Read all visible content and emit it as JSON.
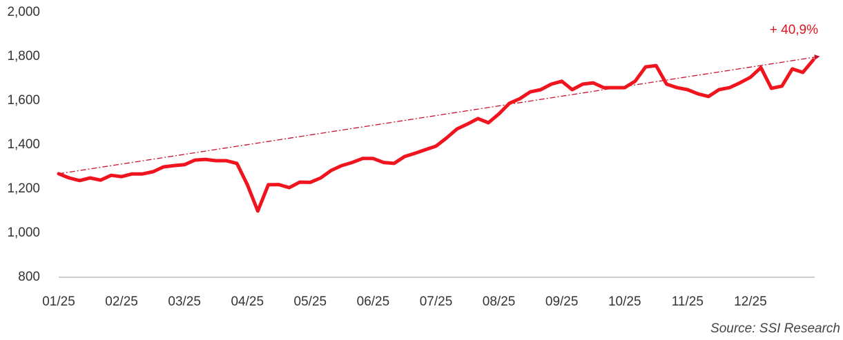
{
  "chart_data": {
    "type": "line",
    "categories": [
      "01/25",
      null,
      null,
      null,
      null,
      null,
      "02/25",
      null,
      null,
      null,
      null,
      null,
      "03/25",
      null,
      null,
      null,
      null,
      null,
      "04/25",
      null,
      null,
      null,
      null,
      null,
      "05/25",
      null,
      null,
      null,
      null,
      null,
      "06/25",
      null,
      null,
      null,
      null,
      null,
      "07/25",
      null,
      null,
      null,
      null,
      null,
      "08/25",
      null,
      null,
      null,
      null,
      null,
      "09/25",
      null,
      null,
      null,
      null,
      null,
      "10/25",
      null,
      null,
      null,
      null,
      null,
      "11/25",
      null,
      null,
      null,
      null,
      null,
      "12/25",
      null,
      null,
      null,
      null,
      null,
      null
    ],
    "series": [
      {
        "color": "#f0141e",
        "values": [
          1269,
          1250,
          1238,
          1250,
          1240,
          1262,
          1256,
          1268,
          1268,
          1278,
          1300,
          1306,
          1310,
          1331,
          1334,
          1328,
          1328,
          1316,
          1219,
          1100,
          1219,
          1220,
          1206,
          1231,
          1230,
          1250,
          1284,
          1306,
          1320,
          1338,
          1338,
          1320,
          1316,
          1347,
          1362,
          1378,
          1394,
          1431,
          1472,
          1494,
          1519,
          1500,
          1540,
          1588,
          1609,
          1640,
          1650,
          1675,
          1688,
          1650,
          1675,
          1681,
          1659,
          1659,
          1659,
          1688,
          1753,
          1759,
          1675,
          1659,
          1650,
          1631,
          1619,
          1650,
          1659,
          1681,
          1706,
          1750,
          1656,
          1666,
          1744,
          1728,
          1785
        ]
      }
    ],
    "ylim": [
      800,
      2000
    ],
    "yticks": [
      800,
      {
        "value": 1000,
        "label": "1,000"
      },
      {
        "value": 1200,
        "label": "1,200"
      },
      {
        "value": 1400,
        "label": "1,400"
      },
      {
        "value": 1600,
        "label": "1,600"
      },
      {
        "value": 1800,
        "label": "1,800"
      },
      {
        "value": 2000,
        "label": "2,000"
      }
    ],
    "trend_line": {
      "start": 1269,
      "end": 1800,
      "color": "#c8102e"
    },
    "annotation": "+ 40,9%",
    "source": "Source: SSI Research"
  }
}
